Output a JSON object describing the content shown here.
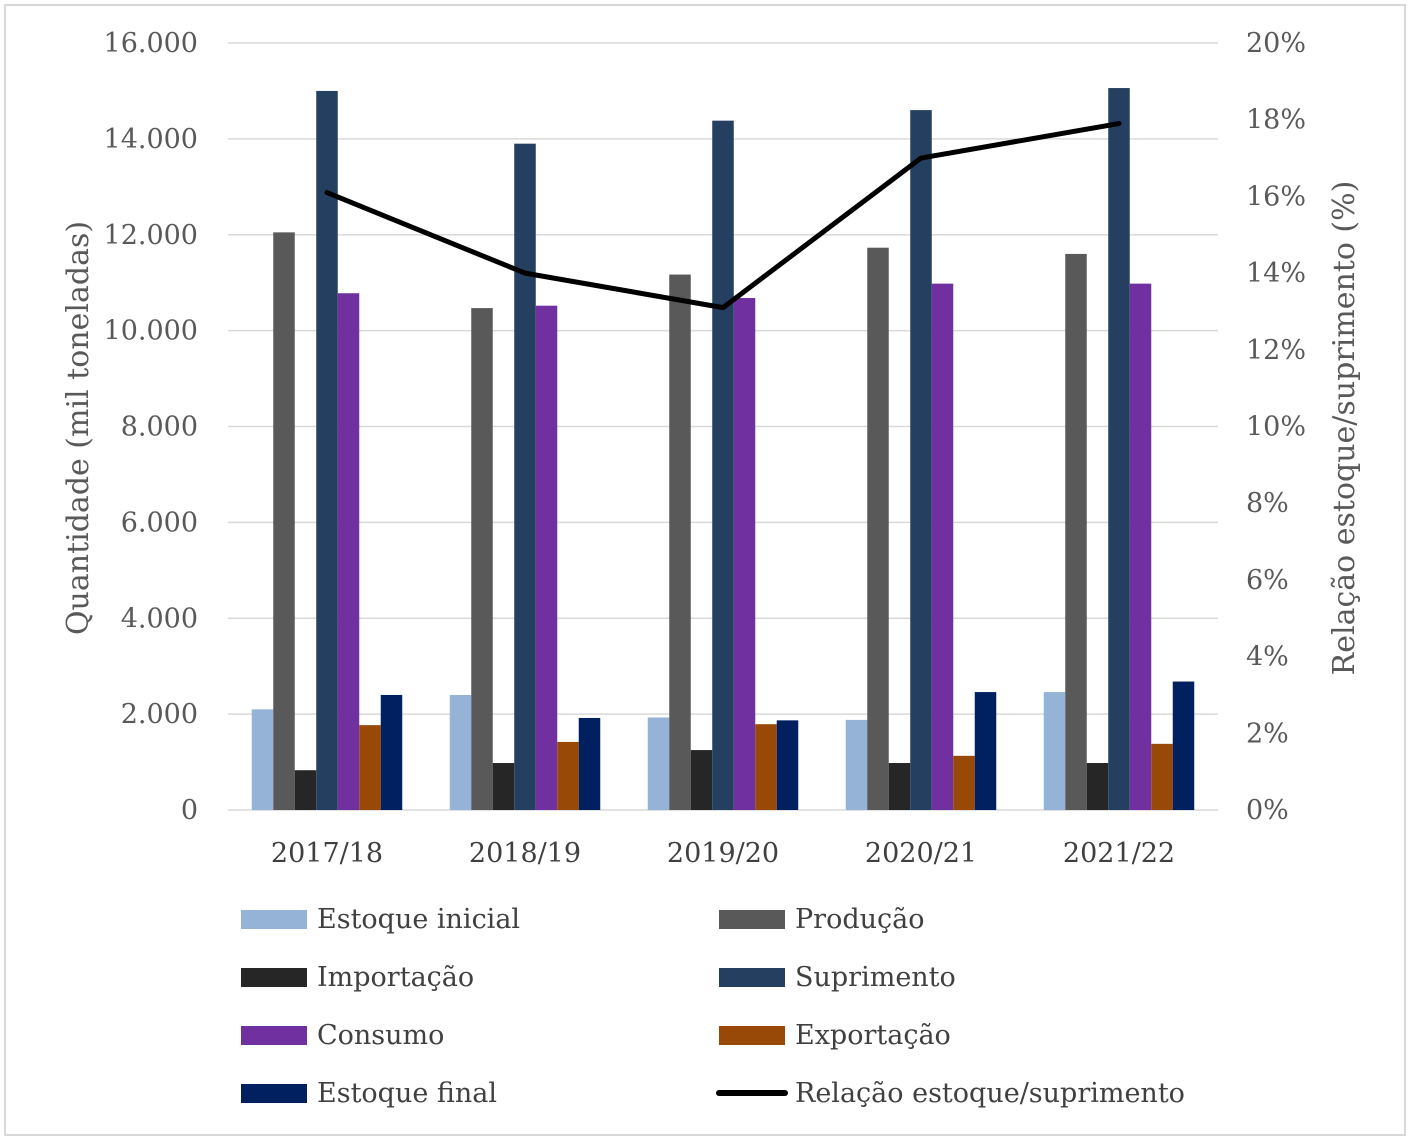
{
  "chart_data": {
    "type": "bar",
    "categories": [
      "2017/18",
      "2018/19",
      "2019/20",
      "2020/21",
      "2021/22"
    ],
    "series": [
      {
        "name": "Estoque inicial",
        "color": "#95b3d7",
        "values": [
          2100,
          2400,
          1930,
          1880,
          2460
        ]
      },
      {
        "name": "Produção",
        "color": "#595959",
        "values": [
          12050,
          10470,
          11170,
          11730,
          11600
        ]
      },
      {
        "name": "Importação",
        "color": "#262626",
        "values": [
          830,
          980,
          1250,
          980,
          980
        ]
      },
      {
        "name": "Suprimento",
        "color": "#243f60",
        "values": [
          15000,
          13900,
          14380,
          14600,
          15060
        ]
      },
      {
        "name": "Consumo",
        "color": "#7030a0",
        "values": [
          10780,
          10520,
          10680,
          10980,
          10980
        ]
      },
      {
        "name": "Exportação",
        "color": "#984807",
        "values": [
          1770,
          1420,
          1790,
          1130,
          1380
        ]
      },
      {
        "name": "Estoque final",
        "color": "#002060",
        "values": [
          2400,
          1920,
          1870,
          2460,
          2680
        ]
      }
    ],
    "line_series": {
      "name": "Relação estoque/suprimento",
      "color": "#000000",
      "axis": "right",
      "values": [
        16.1,
        14.0,
        13.1,
        17.0,
        17.9
      ]
    },
    "ylabel": "Quantidade (mil toneladas)",
    "y2label": "Relação estoque/suprimento (%)",
    "ylim": [
      0,
      16000
    ],
    "y2lim": [
      0,
      20
    ],
    "yticks": [
      "0",
      "2.000",
      "4.000",
      "6.000",
      "8.000",
      "10.000",
      "12.000",
      "14.000",
      "16.000"
    ],
    "y2ticks": [
      "0%",
      "2%",
      "4%",
      "6%",
      "8%",
      "10%",
      "12%",
      "14%",
      "16%",
      "18%",
      "20%"
    ],
    "grid": true,
    "legend_position": "bottom"
  }
}
